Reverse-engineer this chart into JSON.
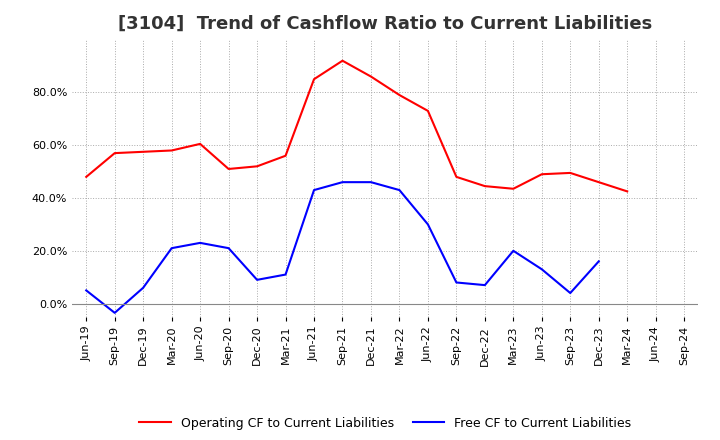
{
  "title": "[3104]  Trend of Cashflow Ratio to Current Liabilities",
  "x_labels": [
    "Jun-19",
    "Sep-19",
    "Dec-19",
    "Mar-20",
    "Jun-20",
    "Sep-20",
    "Dec-20",
    "Mar-21",
    "Jun-21",
    "Sep-21",
    "Dec-21",
    "Mar-22",
    "Jun-22",
    "Sep-22",
    "Dec-22",
    "Mar-23",
    "Jun-23",
    "Sep-23",
    "Dec-23",
    "Mar-24",
    "Jun-24",
    "Sep-24"
  ],
  "operating_cf": [
    48.0,
    57.0,
    57.5,
    58.0,
    60.5,
    51.0,
    52.0,
    56.0,
    85.0,
    92.0,
    86.0,
    79.0,
    73.0,
    48.0,
    44.5,
    43.5,
    49.0,
    49.5,
    46.0,
    42.5,
    null,
    null
  ],
  "free_cf": [
    5.0,
    -3.5,
    6.0,
    21.0,
    23.0,
    21.0,
    9.0,
    11.0,
    43.0,
    46.0,
    46.0,
    43.0,
    30.0,
    8.0,
    7.0,
    20.0,
    13.0,
    4.0,
    16.0,
    null,
    null,
    null
  ],
  "operating_color": "#ff0000",
  "free_color": "#0000ff",
  "ylim": [
    -5,
    100
  ],
  "yticks": [
    0.0,
    20.0,
    40.0,
    60.0,
    80.0
  ],
  "background_color": "#ffffff",
  "grid_color": "#aaaaaa",
  "title_fontsize": 13,
  "legend_fontsize": 9,
  "tick_fontsize": 8
}
